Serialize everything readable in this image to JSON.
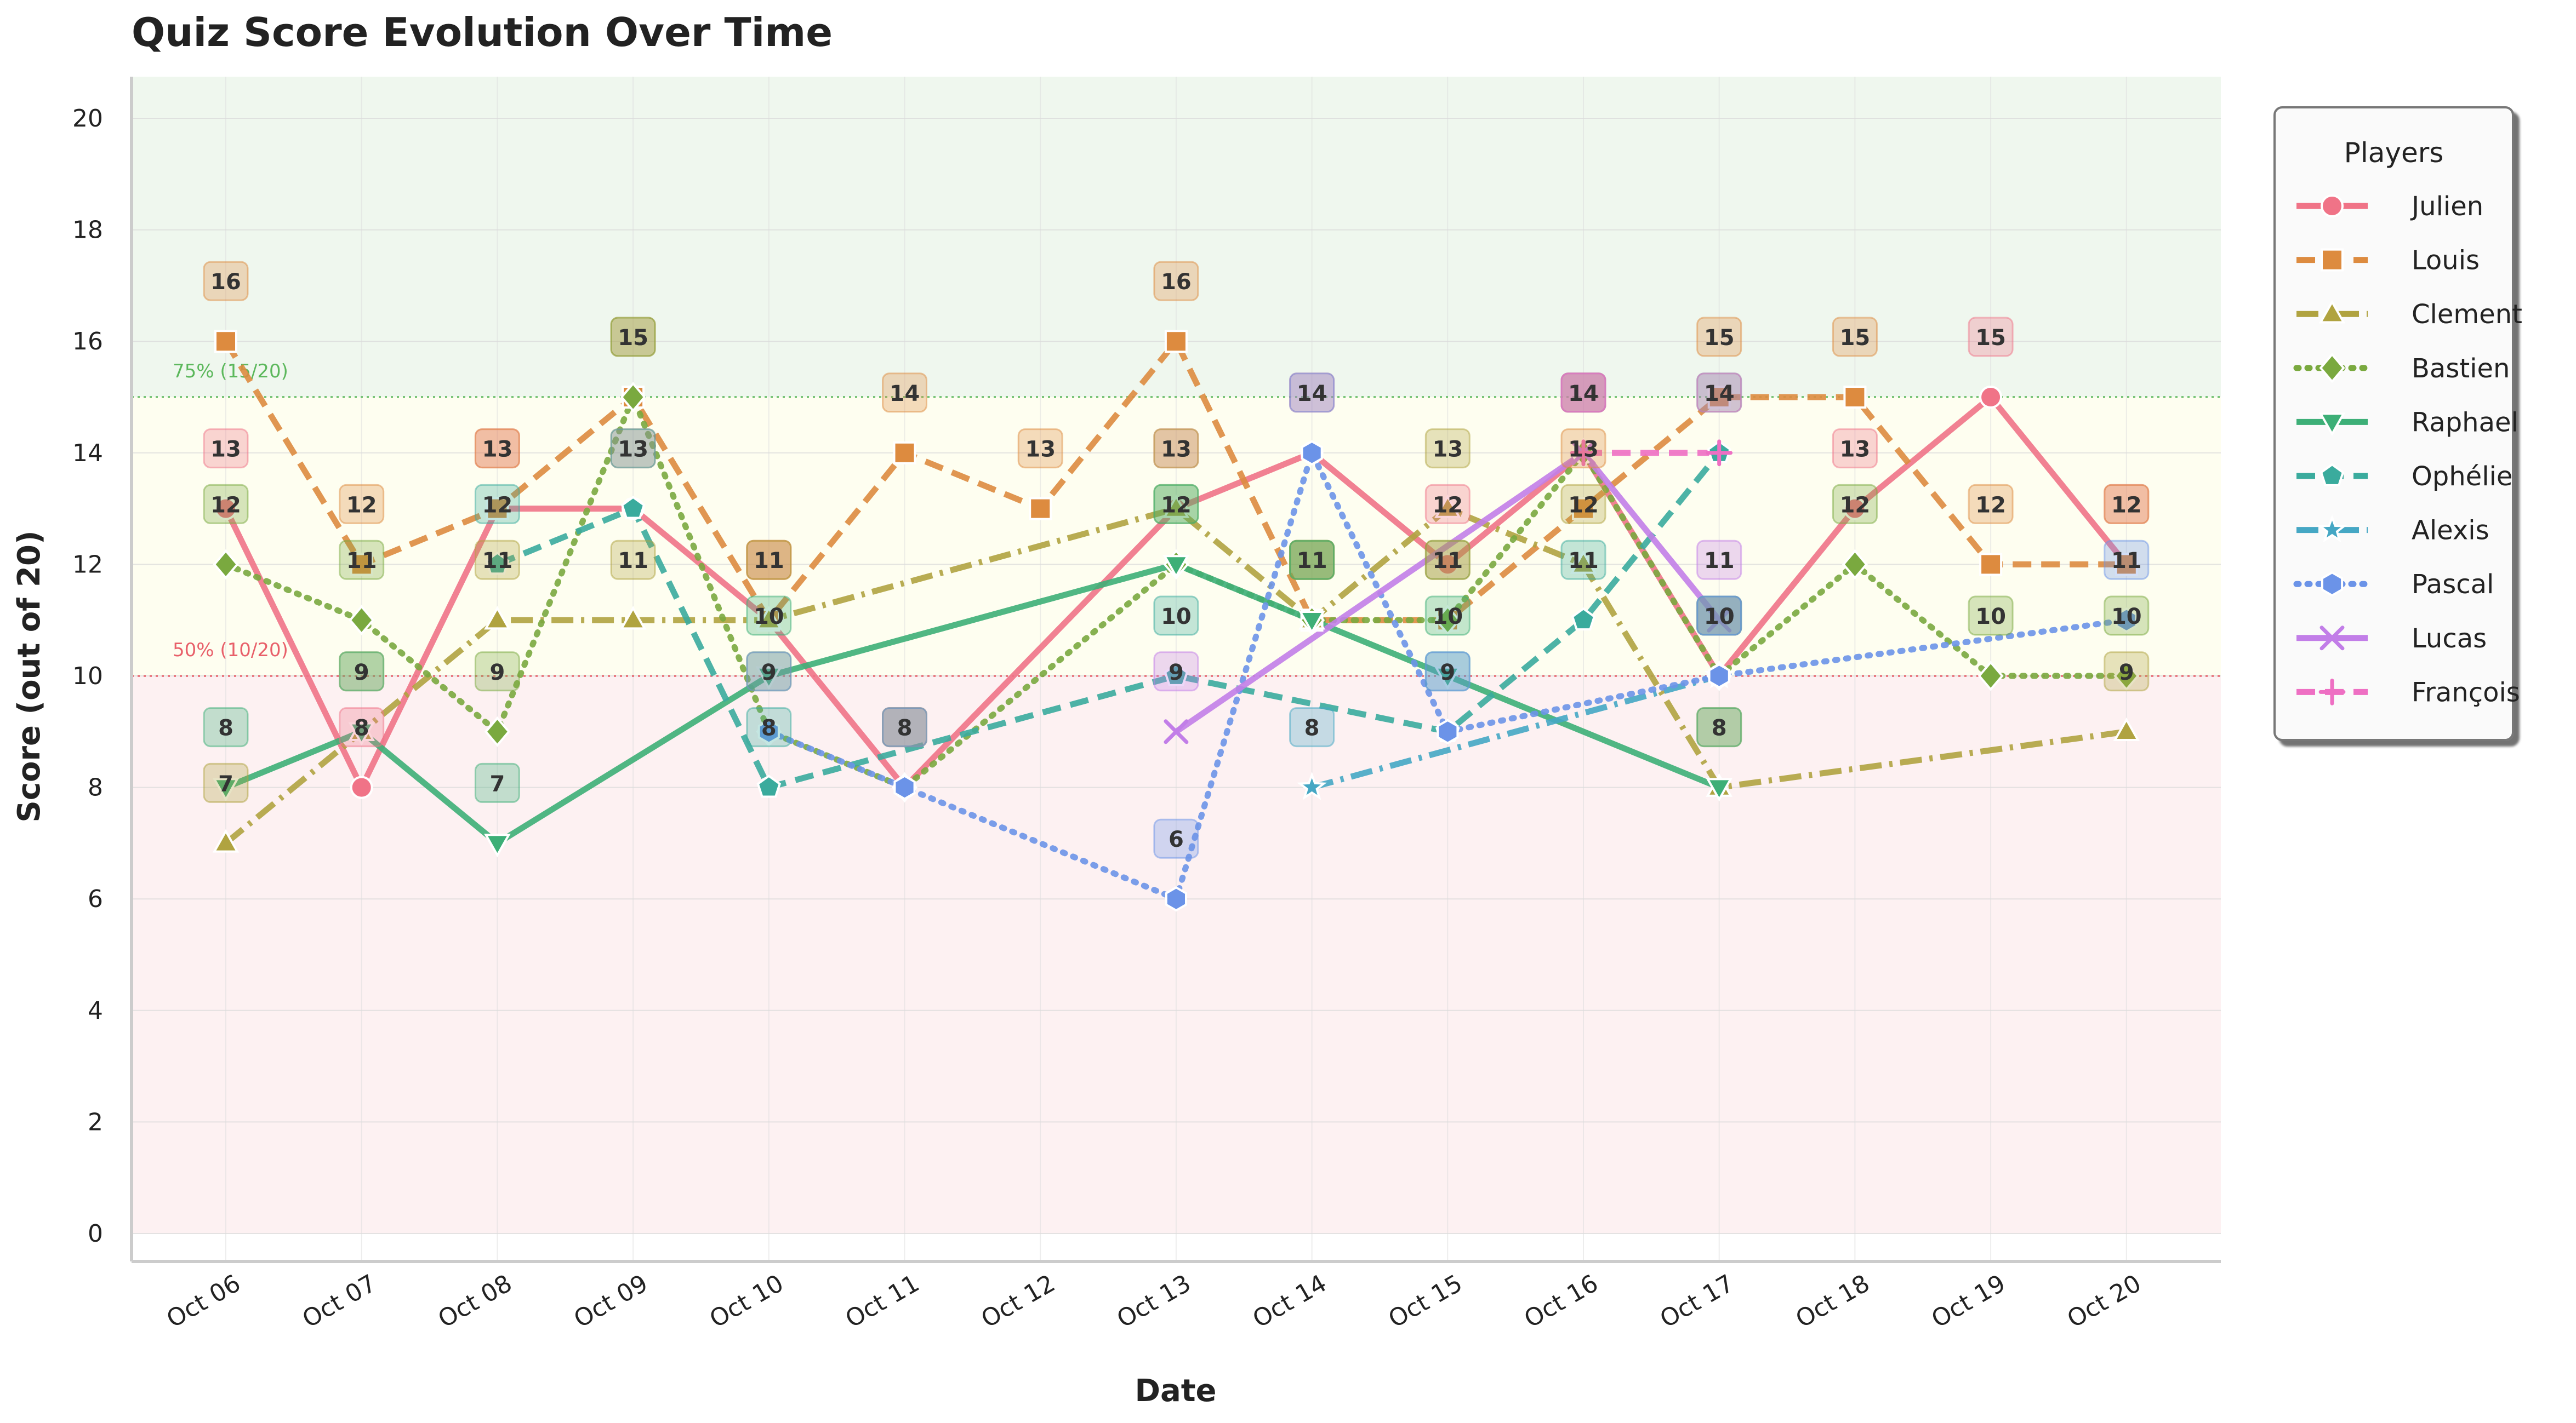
{
  "chart_data": {
    "type": "line",
    "title": "Quiz Score Evolution Over Time",
    "xlabel": "Date",
    "ylabel": "Score (out of 20)",
    "ylim": [
      0,
      20
    ],
    "yticks": [
      0,
      2,
      4,
      6,
      8,
      10,
      12,
      14,
      16,
      18,
      20
    ],
    "categories": [
      "Oct 06",
      "Oct 07",
      "Oct 08",
      "Oct 09",
      "Oct 10",
      "Oct 11",
      "Oct 12",
      "Oct 13",
      "Oct 14",
      "Oct 15",
      "Oct 16",
      "Oct 17",
      "Oct 18",
      "Oct 19",
      "Oct 20"
    ],
    "grid": true,
    "legend": {
      "title": "Players",
      "position": "outside-right"
    },
    "bands": [
      {
        "from": 0,
        "to": 10,
        "color": "#fdf1f2"
      },
      {
        "from": 10,
        "to": 15,
        "color": "#fefef0"
      },
      {
        "from": 15,
        "to": 20,
        "color": "#eff7ee"
      }
    ],
    "reference_lines": [
      {
        "y": 15,
        "label": "75% (15/20)",
        "color": "#5cb85c"
      },
      {
        "y": 10,
        "label": "50% (10/20)",
        "color": "#e8606a"
      }
    ],
    "series": [
      {
        "name": "Julien",
        "color": "#f07387",
        "marker": "circle",
        "dash": "solid",
        "points": [
          [
            "Oct 06",
            13
          ],
          [
            "Oct 07",
            8
          ],
          [
            "Oct 08",
            13
          ],
          [
            "Oct 09",
            13
          ],
          [
            "Oct 10",
            11
          ],
          [
            "Oct 11",
            8
          ],
          [
            "Oct 13",
            13
          ],
          [
            "Oct 14",
            14
          ],
          [
            "Oct 15",
            12
          ],
          [
            "Oct 16",
            14
          ],
          [
            "Oct 17",
            10
          ],
          [
            "Oct 18",
            13
          ],
          [
            "Oct 19",
            15
          ],
          [
            "Oct 20",
            12
          ]
        ]
      },
      {
        "name": "Louis",
        "color": "#dd8b3f",
        "marker": "square",
        "dash": "dashed",
        "points": [
          [
            "Oct 06",
            16
          ],
          [
            "Oct 07",
            12
          ],
          [
            "Oct 08",
            13
          ],
          [
            "Oct 09",
            15
          ],
          [
            "Oct 10",
            11
          ],
          [
            "Oct 11",
            14
          ],
          [
            "Oct 12",
            13
          ],
          [
            "Oct 13",
            16
          ],
          [
            "Oct 14",
            11
          ],
          [
            "Oct 15",
            11
          ],
          [
            "Oct 16",
            13
          ],
          [
            "Oct 17",
            15
          ],
          [
            "Oct 18",
            15
          ],
          [
            "Oct 19",
            12
          ],
          [
            "Oct 20",
            12
          ]
        ]
      },
      {
        "name": "Clement",
        "color": "#b0a340",
        "marker": "triangle-up",
        "dash": "dashdot",
        "points": [
          [
            "Oct 06",
            7
          ],
          [
            "Oct 07",
            9
          ],
          [
            "Oct 08",
            11
          ],
          [
            "Oct 09",
            11
          ],
          [
            "Oct 10",
            11
          ],
          [
            "Oct 13",
            13
          ],
          [
            "Oct 14",
            11
          ],
          [
            "Oct 15",
            13
          ],
          [
            "Oct 16",
            12
          ],
          [
            "Oct 17",
            8
          ],
          [
            "Oct 20",
            9
          ]
        ]
      },
      {
        "name": "Bastien",
        "color": "#7aa93f",
        "marker": "diamond",
        "dash": "dotted",
        "points": [
          [
            "Oct 06",
            12
          ],
          [
            "Oct 07",
            11
          ],
          [
            "Oct 08",
            9
          ],
          [
            "Oct 09",
            15
          ],
          [
            "Oct 10",
            9
          ],
          [
            "Oct 11",
            8
          ],
          [
            "Oct 13",
            12
          ],
          [
            "Oct 14",
            11
          ],
          [
            "Oct 15",
            11
          ],
          [
            "Oct 16",
            14
          ],
          [
            "Oct 17",
            10
          ],
          [
            "Oct 18",
            12
          ],
          [
            "Oct 19",
            10
          ],
          [
            "Oct 20",
            10
          ]
        ]
      },
      {
        "name": "Raphael",
        "color": "#3daf77",
        "marker": "triangle-down",
        "dash": "solid",
        "points": [
          [
            "Oct 06",
            8
          ],
          [
            "Oct 07",
            9
          ],
          [
            "Oct 08",
            7
          ],
          [
            "Oct 10",
            10
          ],
          [
            "Oct 13",
            12
          ],
          [
            "Oct 14",
            11
          ],
          [
            "Oct 15",
            10
          ],
          [
            "Oct 17",
            8
          ]
        ]
      },
      {
        "name": "Ophélie",
        "color": "#3aab9d",
        "marker": "pentagon",
        "dash": "dashed",
        "points": [
          [
            "Oct 08",
            12
          ],
          [
            "Oct 09",
            13
          ],
          [
            "Oct 10",
            8
          ],
          [
            "Oct 13",
            10
          ],
          [
            "Oct 15",
            9
          ],
          [
            "Oct 16",
            11
          ],
          [
            "Oct 17",
            14
          ]
        ]
      },
      {
        "name": "Alexis",
        "color": "#45a7c4",
        "marker": "star",
        "dash": "dashdot",
        "points": [
          [
            "Oct 14",
            8
          ],
          [
            "Oct 17",
            10
          ]
        ]
      },
      {
        "name": "Pascal",
        "color": "#6b93e8",
        "marker": "hexagon",
        "dash": "dotted",
        "points": [
          [
            "Oct 10",
            9
          ],
          [
            "Oct 11",
            8
          ],
          [
            "Oct 13",
            6
          ],
          [
            "Oct 14",
            14
          ],
          [
            "Oct 15",
            9
          ],
          [
            "Oct 17",
            10
          ],
          [
            "Oct 20",
            11
          ]
        ]
      },
      {
        "name": "Lucas",
        "color": "#c27ee8",
        "marker": "x",
        "dash": "solid",
        "points": [
          [
            "Oct 13",
            9
          ],
          [
            "Oct 16",
            14
          ],
          [
            "Oct 17",
            11
          ]
        ]
      },
      {
        "name": "François",
        "color": "#ee6fc3",
        "marker": "plus",
        "dash": "dashed",
        "points": [
          [
            "Oct 16",
            14
          ],
          [
            "Oct 17",
            14
          ]
        ]
      }
    ]
  }
}
